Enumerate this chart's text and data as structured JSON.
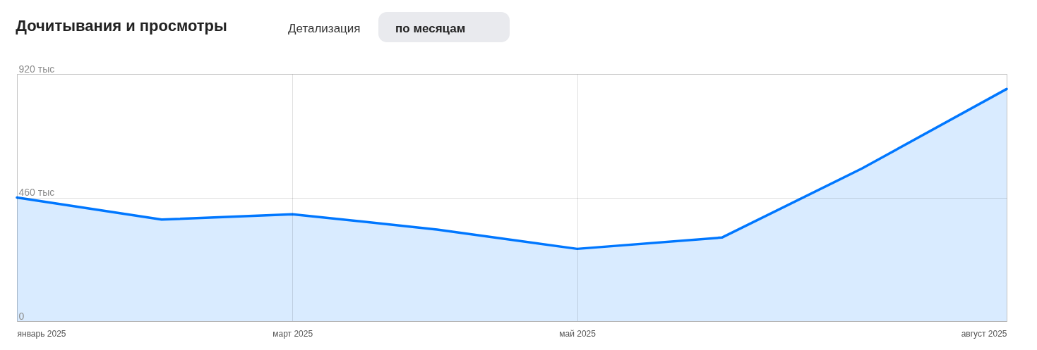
{
  "chart_data": {
    "type": "area",
    "title": "Дочитывания и просмотры",
    "annotations": [
      "Детализация",
      "по месяцам"
    ],
    "x": [
      "2025-01",
      "2025-02",
      "2025-03",
      "2025-04",
      "2025-05",
      "2025-06",
      "2025-07",
      "2025-08"
    ],
    "series": [
      {
        "color": "#0077ff",
        "values": [
          460,
          378,
          398,
          341,
          269,
          311,
          568,
          864
        ]
      }
    ],
    "xlim": [
      "2025-01",
      "2025-08"
    ],
    "xticks": [
      {
        "value": "2025-01",
        "label": "январь 2025"
      },
      {
        "value": "2025-03",
        "label": "март 2025"
      },
      {
        "value": "2025-05",
        "label": "май 2025"
      },
      {
        "value": "2025-08",
        "label": "август 2025"
      }
    ],
    "ylim": [
      0,
      920
    ],
    "yticks": [
      0,
      {
        "value": 460,
        "label": "460 тыс"
      },
      {
        "value": 920,
        "label": "920 тыс"
      }
    ],
    "grid": true
  }
}
